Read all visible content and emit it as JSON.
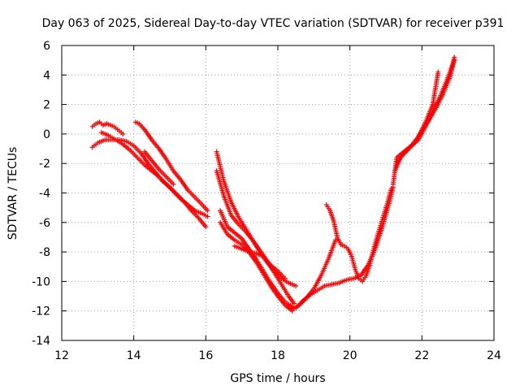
{
  "chart_data": {
    "type": "scatter",
    "title": "Day 063 of 2025, Sidereal Day-to-day VTEC variation (SDTVAR) for receiver p391",
    "xlabel": "GPS time / hours",
    "ylabel": "SDTVAR / TECUs",
    "xlim": [
      12,
      24
    ],
    "ylim": [
      -14,
      6
    ],
    "xticks": [
      12,
      14,
      16,
      18,
      20,
      22,
      24
    ],
    "yticks": [
      -14,
      -12,
      -10,
      -8,
      -6,
      -4,
      -2,
      0,
      2,
      4,
      6
    ],
    "grid": true,
    "marker": "+",
    "color": "#ff0000",
    "series": [
      {
        "x": [
          12.85,
          12.95,
          13.05,
          13.15,
          13.25,
          13.35,
          13.45,
          13.55,
          13.65,
          13.7
        ],
        "y": [
          0.5,
          0.7,
          0.8,
          0.6,
          0.7,
          0.6,
          0.5,
          0.3,
          0.1,
          0.0
        ]
      },
      {
        "x": [
          12.85,
          13.0,
          13.2,
          13.4,
          13.6,
          13.8,
          14.0,
          14.2,
          14.4,
          14.6,
          14.8,
          15.0,
          15.2,
          15.4,
          15.6,
          15.8,
          16.0
        ],
        "y": [
          -0.9,
          -0.6,
          -0.4,
          -0.4,
          -0.4,
          -0.5,
          -0.8,
          -1.3,
          -2.0,
          -2.6,
          -3.2,
          -3.6,
          -4.1,
          -4.6,
          -5.2,
          -5.7,
          -6.3
        ]
      },
      {
        "x": [
          13.1,
          13.3,
          13.5,
          13.7,
          13.9,
          14.1,
          14.3,
          14.5,
          14.7,
          14.9,
          15.1,
          15.3,
          15.5,
          15.7,
          15.9,
          16.05
        ],
        "y": [
          0.1,
          -0.1,
          -0.4,
          -0.7,
          -1.1,
          -1.6,
          -2.1,
          -2.5,
          -2.9,
          -3.4,
          -3.9,
          -4.4,
          -4.8,
          -5.2,
          -5.4,
          -5.6
        ]
      },
      {
        "x": [
          14.05,
          14.15,
          14.3,
          14.5,
          14.7,
          14.9,
          15.1,
          15.3,
          15.5,
          15.7,
          15.9,
          16.05
        ],
        "y": [
          0.8,
          0.7,
          0.3,
          -0.4,
          -1.0,
          -1.7,
          -2.5,
          -3.1,
          -3.8,
          -4.3,
          -4.8,
          -5.2
        ]
      },
      {
        "x": [
          14.3,
          14.5,
          14.7,
          14.9,
          15.1
        ],
        "y": [
          -1.2,
          -1.8,
          -2.4,
          -2.9,
          -3.4
        ]
      },
      {
        "x": [
          16.3,
          16.4,
          16.5,
          16.7,
          16.9,
          17.1,
          17.3,
          17.5,
          17.7,
          17.9,
          18.1,
          18.3,
          18.5
        ],
        "y": [
          -1.2,
          -2.2,
          -3.2,
          -4.6,
          -5.6,
          -6.4,
          -7.2,
          -8.0,
          -8.7,
          -9.3,
          -9.8,
          -10.1,
          -10.3
        ]
      },
      {
        "x": [
          16.3,
          16.5,
          16.7,
          16.9,
          17.1,
          17.3,
          17.5,
          17.7,
          17.9,
          18.1,
          18.3,
          18.45
        ],
        "y": [
          -2.5,
          -4.2,
          -5.5,
          -6.1,
          -6.6,
          -7.2,
          -7.9,
          -8.6,
          -9.4,
          -10.2,
          -11.0,
          -11.5
        ]
      },
      {
        "x": [
          16.4,
          16.6,
          16.8,
          17.0,
          17.2,
          17.4,
          17.6,
          17.8,
          18.0,
          18.2,
          18.4
        ],
        "y": [
          -5.2,
          -6.3,
          -6.7,
          -7.1,
          -7.8,
          -8.5,
          -9.3,
          -10.1,
          -10.8,
          -11.4,
          -11.7
        ]
      },
      {
        "x": [
          16.4,
          16.6,
          16.8,
          17.0,
          17.2,
          17.4,
          17.6,
          17.8,
          18.0,
          18.2,
          18.4
        ],
        "y": [
          -6.0,
          -6.8,
          -7.2,
          -7.5,
          -8.0,
          -8.7,
          -9.5,
          -10.3,
          -11.0,
          -11.6,
          -12.0
        ]
      },
      {
        "x": [
          16.8,
          17.0,
          17.2,
          17.4,
          17.6,
          17.8,
          18.0,
          18.2
        ],
        "y": [
          -7.6,
          -7.8,
          -8.0,
          -8.1,
          -8.3,
          -8.9,
          -9.3,
          -9.8
        ]
      },
      {
        "x": [
          18.3,
          18.5,
          18.7,
          18.9,
          19.1,
          19.3,
          19.5,
          19.7,
          19.9,
          20.1,
          20.3,
          20.5,
          20.7,
          20.9,
          21.1,
          21.2
        ],
        "y": [
          -11.7,
          -11.8,
          -11.3,
          -10.9,
          -10.6,
          -10.3,
          -10.2,
          -10.1,
          -9.9,
          -9.8,
          -9.6,
          -8.9,
          -7.8,
          -6.3,
          -4.6,
          -3.6
        ]
      },
      {
        "x": [
          18.4,
          18.6,
          18.8,
          19.0,
          19.2,
          19.4,
          19.6
        ],
        "y": [
          -11.9,
          -11.6,
          -11.1,
          -10.5,
          -9.6,
          -8.5,
          -7.2
        ]
      },
      {
        "x": [
          19.35,
          19.45,
          19.55,
          19.65,
          19.75,
          19.85,
          19.95,
          20.05,
          20.15,
          20.25,
          20.35,
          20.45,
          20.55,
          20.65,
          20.75,
          20.85,
          20.95,
          21.05,
          21.15
        ],
        "y": [
          -4.8,
          -5.2,
          -5.9,
          -7.0,
          -7.5,
          -7.6,
          -7.8,
          -8.3,
          -9.2,
          -9.8,
          -10.0,
          -9.6,
          -8.9,
          -7.9,
          -7.0,
          -6.2,
          -5.4,
          -4.6,
          -3.7
        ]
      },
      {
        "x": [
          21.2,
          21.3,
          21.5,
          21.7,
          21.9,
          22.1,
          22.3,
          22.5,
          22.7,
          22.9
        ],
        "y": [
          -3.4,
          -1.6,
          -1.2,
          -0.8,
          -0.4,
          0.5,
          1.5,
          2.5,
          3.7,
          5.0
        ]
      },
      {
        "x": [
          21.3,
          21.5,
          21.7,
          21.9,
          22.1,
          22.3,
          22.45
        ],
        "y": [
          -2.0,
          -1.3,
          -0.8,
          -0.2,
          0.8,
          2.0,
          4.2
        ]
      },
      {
        "x": [
          21.25,
          21.4,
          21.6,
          21.8,
          22.0,
          22.2,
          22.4,
          22.6,
          22.8,
          22.9
        ],
        "y": [
          -2.5,
          -1.6,
          -1.1,
          -0.6,
          0.2,
          1.0,
          1.8,
          2.8,
          4.0,
          5.2
        ]
      }
    ]
  }
}
